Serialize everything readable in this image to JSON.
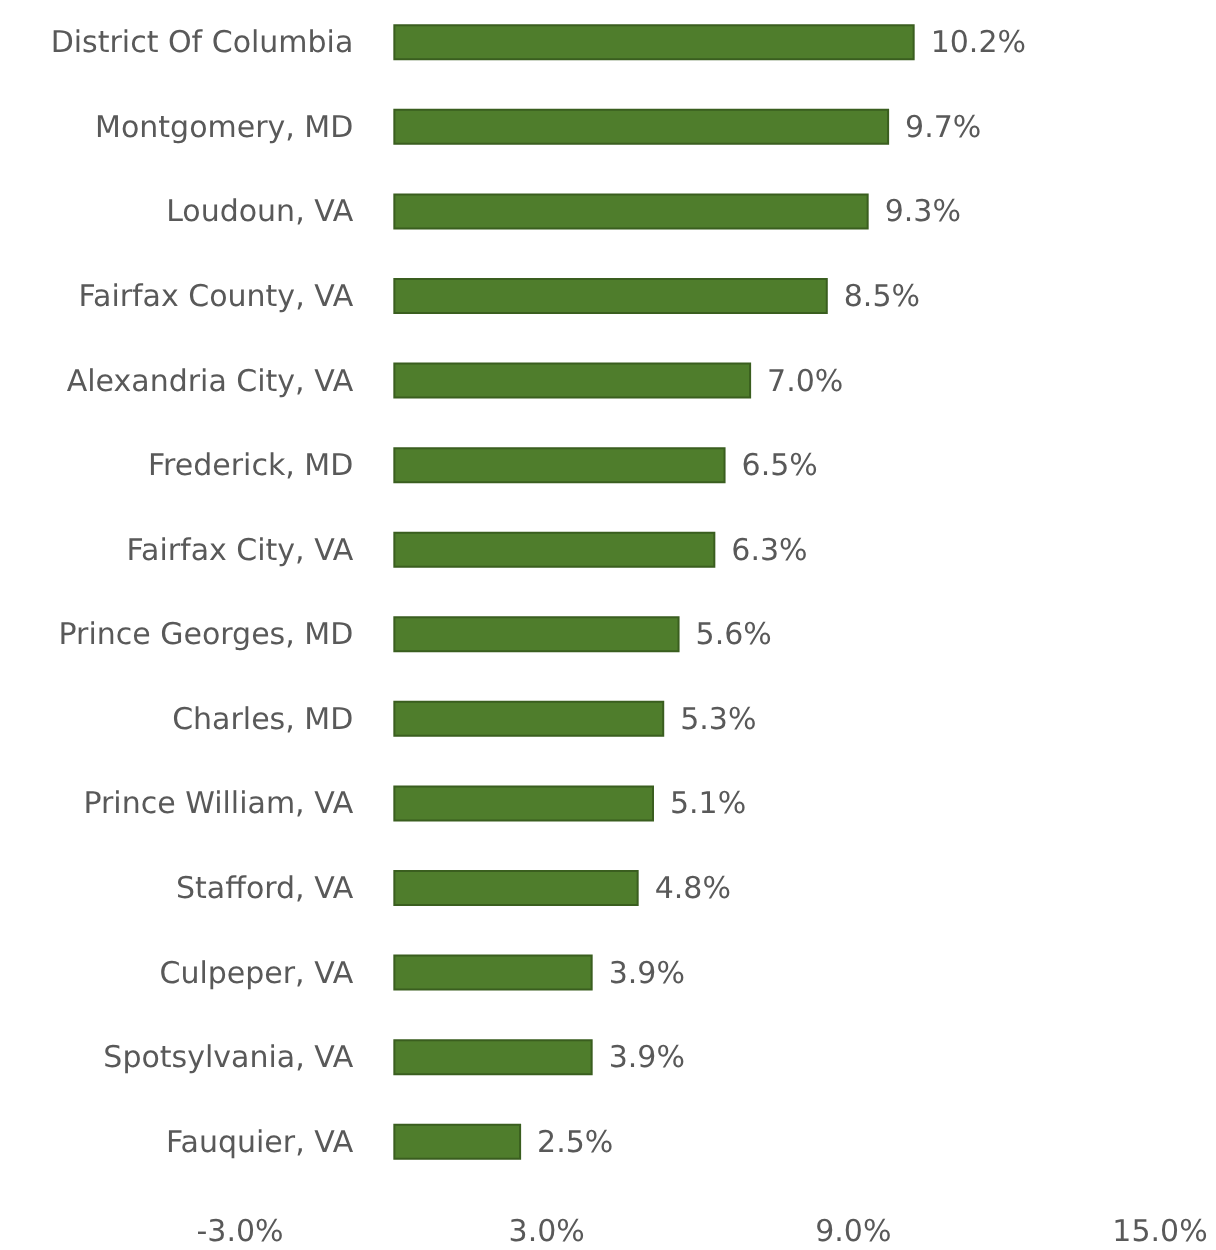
{
  "chart_data": {
    "type": "bar",
    "orientation": "horizontal",
    "categories": [
      "District Of Columbia",
      "Montgomery, MD",
      "Loudoun, VA",
      "Fairfax County, VA",
      "Alexandria City, VA",
      "Frederick, MD",
      "Fairfax City, VA",
      "Prince Georges, MD",
      "Charles, MD",
      "Prince William, VA",
      "Stafford, VA",
      "Culpeper, VA",
      "Spotsylvania, VA",
      "Fauquier, VA"
    ],
    "values": [
      10.2,
      9.7,
      9.3,
      8.5,
      7.0,
      6.5,
      6.3,
      5.6,
      5.3,
      5.1,
      4.8,
      3.9,
      3.9,
      2.5
    ],
    "value_labels": [
      "10.2%",
      "9.7%",
      "9.3%",
      "8.5%",
      "7.0%",
      "6.5%",
      "6.3%",
      "5.6%",
      "5.3%",
      "5.1%",
      "4.8%",
      "3.9%",
      "3.9%",
      "2.5%"
    ],
    "color": "#4f7d2c",
    "xlim": [
      -3,
      15
    ],
    "xticks": [
      {
        "value": -3,
        "label": "-3.0%"
      },
      {
        "value": 3,
        "label": "3.0%"
      },
      {
        "value": 9,
        "label": "9.0%"
      },
      {
        "value": 15,
        "label": "15.0%"
      }
    ],
    "grid": false
  }
}
